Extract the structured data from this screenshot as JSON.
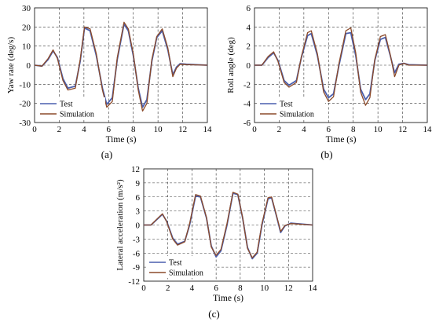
{
  "chart_data": [
    {
      "panel": "(a)",
      "type": "line",
      "xlabel": "Time (s)",
      "ylabel": "Yaw rate (deg/s)",
      "xlim": [
        0,
        14
      ],
      "ylim": [
        -30,
        30
      ],
      "xticks": [
        0,
        2,
        4,
        6,
        8,
        10,
        12,
        14
      ],
      "yticks": [
        -30,
        -20,
        -10,
        0,
        10,
        20,
        30
      ],
      "grid": true,
      "legend": "bottom-left",
      "series": [
        {
          "name": "Test",
          "color": "#4a5fae",
          "x": [
            0,
            0.6,
            1.1,
            1.5,
            1.85,
            2.3,
            2.7,
            3.3,
            3.7,
            4.05,
            4.5,
            5.0,
            5.5,
            5.85,
            6.3,
            6.7,
            7.25,
            7.6,
            8.0,
            8.4,
            8.75,
            9.1,
            9.5,
            9.9,
            10.35,
            10.8,
            11.2,
            11.5,
            11.8,
            12.3,
            14
          ],
          "y": [
            0,
            -0.5,
            3,
            7.5,
            4,
            -7,
            -12,
            -11,
            2,
            19.5,
            18,
            5,
            -12,
            -20.5,
            -17,
            3,
            21.5,
            18,
            5,
            -12,
            -22,
            -18,
            2,
            14.5,
            18,
            8,
            -5,
            -1,
            0.8,
            0.5,
            0
          ]
        },
        {
          "name": "Simulation",
          "color": "#8b4a2a",
          "x": [
            0,
            0.6,
            1.1,
            1.5,
            1.85,
            2.3,
            2.7,
            3.3,
            3.7,
            4.05,
            4.5,
            5.0,
            5.5,
            5.85,
            6.3,
            6.7,
            7.25,
            7.6,
            8.0,
            8.4,
            8.75,
            9.1,
            9.5,
            9.9,
            10.35,
            10.8,
            11.2,
            11.5,
            11.8,
            12.3,
            14
          ],
          "y": [
            0,
            -0.5,
            3.5,
            8,
            3.5,
            -8,
            -13,
            -12,
            3,
            20,
            19,
            6,
            -13,
            -22,
            -19,
            4,
            22.5,
            19,
            6,
            -13,
            -24,
            -20,
            3,
            15,
            19,
            9,
            -6,
            -1.5,
            0.5,
            0.3,
            0
          ]
        }
      ]
    },
    {
      "panel": "(b)",
      "type": "line",
      "xlabel": "Time (s)",
      "ylabel": "Roll angle (deg)",
      "xlim": [
        0,
        14
      ],
      "ylim": [
        -6,
        6
      ],
      "xticks": [
        0,
        2,
        4,
        6,
        8,
        10,
        12,
        14
      ],
      "yticks": [
        -6,
        -4,
        -2,
        0,
        2,
        4,
        6
      ],
      "grid": true,
      "legend": "bottom-left",
      "series": [
        {
          "name": "Test",
          "color": "#4a5fae",
          "x": [
            0,
            0.6,
            1.1,
            1.55,
            1.9,
            2.4,
            2.8,
            3.4,
            3.8,
            4.3,
            4.6,
            5.1,
            5.6,
            6.0,
            6.4,
            6.85,
            7.4,
            7.8,
            8.2,
            8.6,
            9.0,
            9.35,
            9.75,
            10.2,
            10.6,
            11.0,
            11.35,
            11.7,
            12.1,
            12.5,
            14
          ],
          "y": [
            0,
            0,
            0.8,
            1.3,
            0.5,
            -1.6,
            -2.1,
            -1.6,
            0.8,
            3.1,
            3.3,
            1.0,
            -2.5,
            -3.4,
            -3.0,
            0,
            3.3,
            3.4,
            1.0,
            -2.5,
            -3.6,
            -3.0,
            0.5,
            2.7,
            2.9,
            1.0,
            -0.8,
            0.1,
            0.2,
            0.05,
            0
          ]
        },
        {
          "name": "Simulation",
          "color": "#8b4a2a",
          "x": [
            0,
            0.6,
            1.1,
            1.55,
            1.9,
            2.4,
            2.8,
            3.4,
            3.8,
            4.3,
            4.6,
            5.1,
            5.6,
            6.0,
            6.4,
            6.85,
            7.4,
            7.8,
            8.2,
            8.6,
            9.0,
            9.35,
            9.75,
            10.2,
            10.6,
            11.0,
            11.35,
            11.7,
            12.1,
            12.5,
            14
          ],
          "y": [
            0,
            0,
            0.9,
            1.4,
            0.4,
            -1.8,
            -2.3,
            -1.8,
            0.9,
            3.4,
            3.6,
            1.2,
            -2.8,
            -3.8,
            -3.3,
            0.2,
            3.6,
            3.9,
            1.3,
            -2.8,
            -4.2,
            -3.4,
            0.6,
            3.0,
            3.2,
            1.1,
            -1.2,
            0,
            0.2,
            0,
            0
          ]
        }
      ]
    },
    {
      "panel": "(c)",
      "type": "line",
      "xlabel": "Time (s)",
      "ylabel": "Lateral acceleration (m/s²)",
      "xlim": [
        0,
        14
      ],
      "ylim": [
        -12,
        12
      ],
      "xticks": [
        0,
        2,
        4,
        6,
        8,
        10,
        12,
        14
      ],
      "yticks": [
        -12,
        -9,
        -6,
        -3,
        0,
        3,
        6,
        9,
        12
      ],
      "grid": true,
      "legend": "bottom-left",
      "series": [
        {
          "name": "Test",
          "color": "#4a5fae",
          "x": [
            0,
            0.6,
            1.1,
            1.55,
            1.9,
            2.4,
            2.8,
            3.4,
            3.8,
            4.3,
            4.7,
            5.2,
            5.6,
            6.0,
            6.4,
            6.9,
            7.4,
            7.8,
            8.2,
            8.6,
            9.0,
            9.4,
            9.8,
            10.3,
            10.6,
            11.0,
            11.35,
            11.7,
            12.2,
            14
          ],
          "y": [
            0,
            0,
            1.2,
            2.3,
            0.8,
            -2.8,
            -4.1,
            -3.5,
            0,
            6.2,
            6.0,
            1.5,
            -4.5,
            -6.8,
            -5.5,
            0,
            6.8,
            6.5,
            1.5,
            -4.8,
            -7.2,
            -6.0,
            0,
            5.6,
            5.8,
            2.0,
            -1.6,
            -0.2,
            0.4,
            0
          ]
        },
        {
          "name": "Simulation",
          "color": "#8b4a2a",
          "x": [
            0,
            0.6,
            1.1,
            1.55,
            1.9,
            2.4,
            2.8,
            3.4,
            3.8,
            4.3,
            4.7,
            5.2,
            5.6,
            6.0,
            6.4,
            6.9,
            7.4,
            7.8,
            8.2,
            8.6,
            9.0,
            9.4,
            9.8,
            10.3,
            10.6,
            11.0,
            11.35,
            11.7,
            12.2,
            14
          ],
          "y": [
            0,
            0,
            1.3,
            2.4,
            0.7,
            -3.0,
            -4.3,
            -3.6,
            0.3,
            6.5,
            6.2,
            1.6,
            -4.7,
            -6.5,
            -5.2,
            0.3,
            7.0,
            6.6,
            1.6,
            -5.0,
            -7.0,
            -5.8,
            0.3,
            5.8,
            6.0,
            2.1,
            -1.4,
            -0.1,
            0.3,
            0
          ]
        }
      ]
    }
  ]
}
